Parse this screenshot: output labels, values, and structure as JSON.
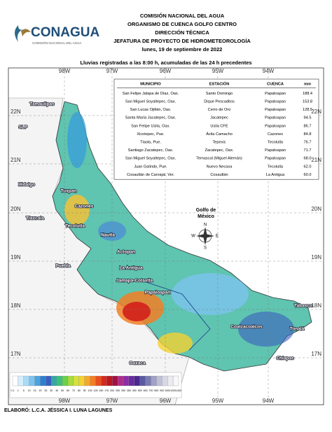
{
  "header": {
    "logo": "CONAGUA",
    "logo_subtitle": "COMISIÓN NACIONAL DEL AGUA",
    "lines": [
      "COMISIÓN NACIONAL DEL AGUA",
      "ORGANISMO DE CUENCA GOLFO CENTRO",
      "DIRECCIÓN TÉCNICA",
      "JEFATURA DE PROYECTO DE HIDROMETEOROLOGÍA",
      "lunes, 19 de septiembre de 2022"
    ]
  },
  "map": {
    "title": "Lluvias registradas a las 8:00 h, acumuladas de las 24 h precedentes",
    "longitudes": [
      "98W",
      "97W",
      "96W",
      "95W",
      "94W"
    ],
    "latitudes": [
      "22N",
      "21N",
      "20N",
      "19N",
      "18N",
      "17N"
    ],
    "sea": "Golfo de México",
    "compass": [
      "N",
      "S",
      "E",
      "W"
    ],
    "places": [
      "Tamaulipas",
      "SLP",
      "Hidalgo",
      "Tuxpan",
      "Cazones",
      "Tecolutla",
      "Nautla",
      "Actopan",
      "La Antigua",
      "Jamapa-Cotaxtla",
      "Tlaxcala",
      "Puebla",
      "Papaloapan",
      "Tabasco",
      "Coatzacoalcos",
      "Tonalá",
      "Oaxaca",
      "Chiapas"
    ]
  },
  "table": {
    "columns": [
      "MUNICIPIO",
      "ESTACIÓN",
      "CUENCA",
      "mm"
    ],
    "rows": [
      [
        "San Felipe Jalapa de Díaz, Oax.",
        "Santo Domingo",
        "Papaloapan",
        "188.4"
      ],
      [
        "San Miguel Soyaltepec, Oax.",
        "Dique Pescaditos",
        "Papaloapan",
        "153.8"
      ],
      [
        "San Lucas Ojitlán, Oax.",
        "Cerro de Oro",
        "Papaloapan",
        "128.5"
      ],
      [
        "Santa María Jacatepec, Oax.",
        "Jacatepec",
        "Papaloapan",
        "94.5"
      ],
      [
        "San Felipe Usila, Oax.",
        "Usila CFE",
        "Papaloapan",
        "86.7"
      ],
      [
        "Xicotepec, Pue.",
        "Ávila Camacho",
        "Cazones",
        "84.8"
      ],
      [
        "Tlaola, Pue.",
        "Tepexic",
        "Tecolutla",
        "76.7"
      ],
      [
        "Santiago Zacatepec, Oax.",
        "Zacatepec, Oax.",
        "Papaloapan",
        "71.7"
      ],
      [
        "San Miguel Soyaltepec, Oax.",
        "Temascal (Miguel Alemán)",
        "Papaloapan",
        "68.0"
      ],
      [
        "Juan Galindo, Pue.",
        "Nuevo Necaxa",
        "Tecolutla",
        "62.0"
      ],
      [
        "Cosautlán de Carvajal, Ver.",
        "Cosautlán",
        "La Antigua",
        "60.0"
      ]
    ]
  },
  "legend": {
    "ticks": [
      "0.1",
      "1",
      "5",
      "10",
      "15",
      "20",
      "25",
      "30",
      "40",
      "50",
      "60",
      "70",
      "80",
      "90",
      "100",
      "125",
      "150",
      "175",
      "200",
      "250",
      "300",
      "350",
      "400",
      "500",
      "600",
      "700",
      "800",
      "900",
      "1000",
      "1200",
      "1400"
    ],
    "colors": [
      "#ffffff",
      "#d6eefb",
      "#a9dbf5",
      "#7cc4ee",
      "#4aa3e0",
      "#2f7fd0",
      "#3a5fc0",
      "#36a8a0",
      "#3cc07a",
      "#6cd04a",
      "#a8dc3a",
      "#d8e03a",
      "#f4d232",
      "#f5a92c",
      "#f27f26",
      "#e8501e",
      "#d42a1e",
      "#b8181e",
      "#a01040",
      "#b02c8c",
      "#8c2ca8",
      "#6a2aa0",
      "#4a2890",
      "#5a5aa0",
      "#7c7cb4",
      "#a0a0c8",
      "#c0c0d8",
      "#d8d8e4",
      "#ececf0",
      "#f8f8fa"
    ]
  },
  "footer": "ELABORÓ: L.C.A. JÉSSICA I. LUNA LAGUNES"
}
